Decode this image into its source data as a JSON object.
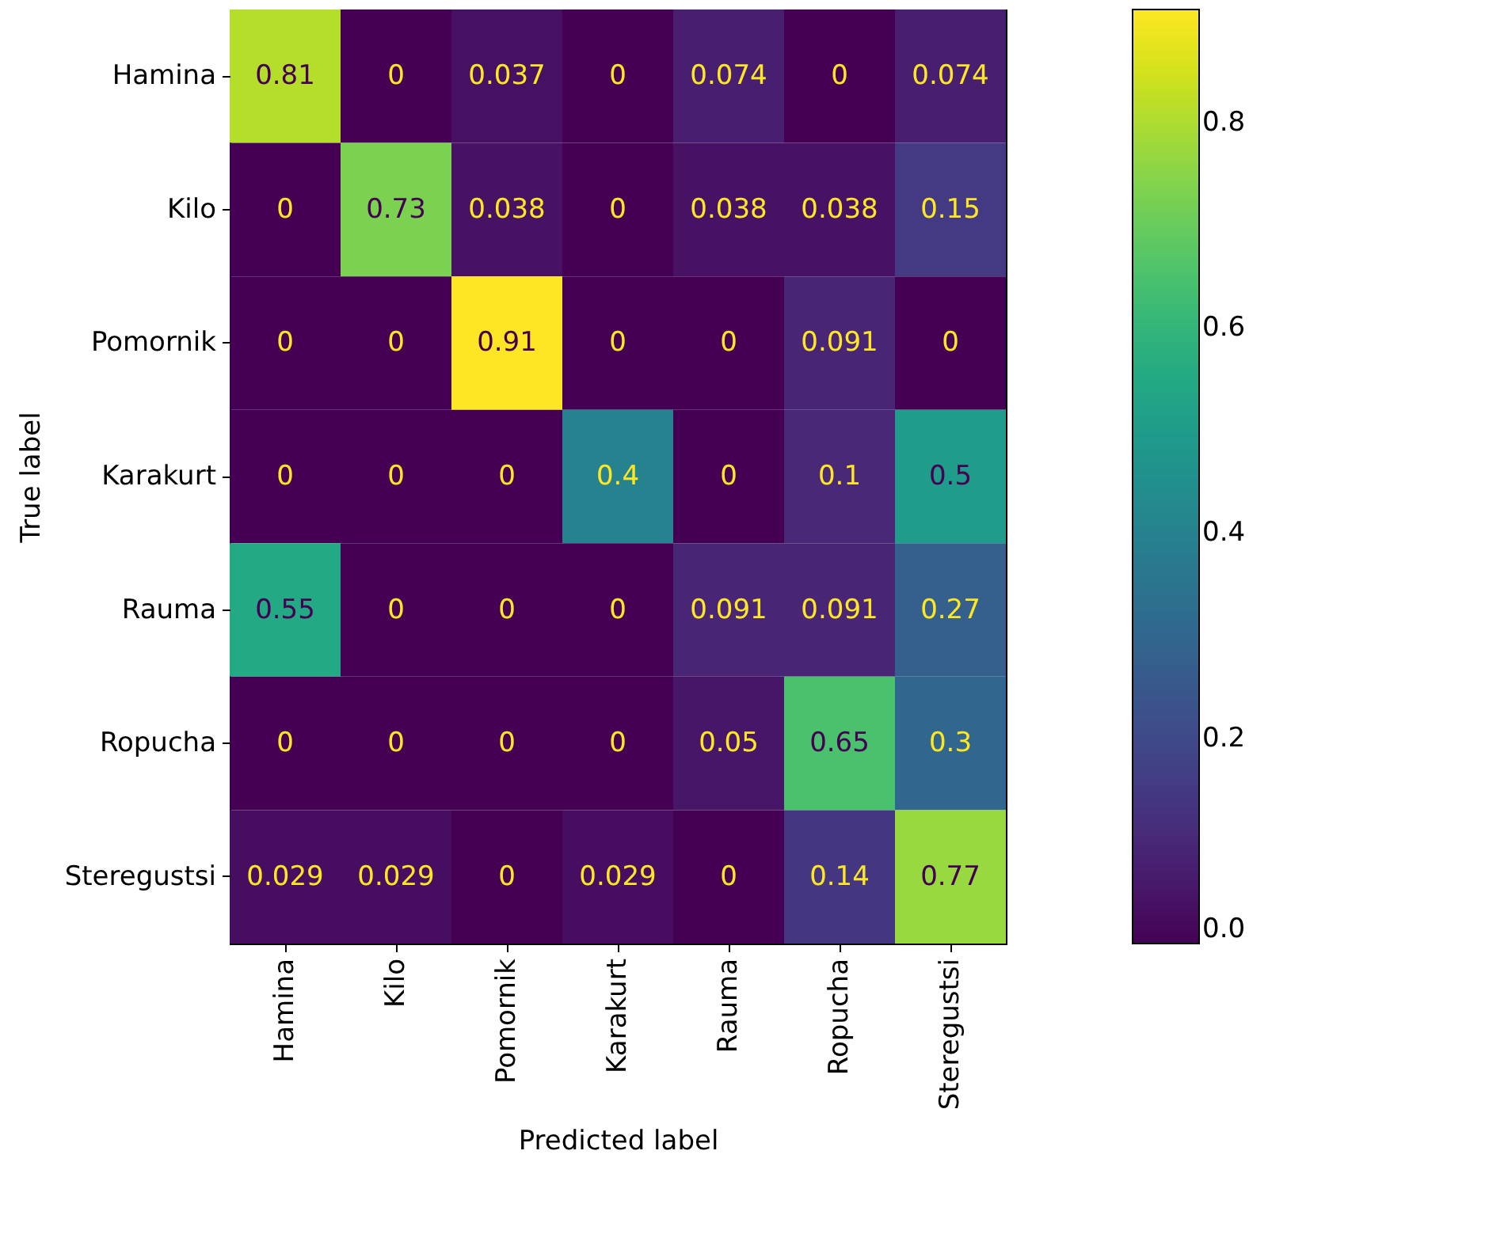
{
  "chart_data": {
    "type": "heatmap",
    "xlabel": "Predicted label",
    "ylabel": "True label",
    "categories": [
      "Hamina",
      "Kilo",
      "Pomornik",
      "Karakurt",
      "Rauma",
      "Ropucha",
      "Steregustsi"
    ],
    "y_categories": [
      "Hamina",
      "Kilo",
      "Pomornik",
      "Karakurt",
      "Rauma",
      "Ropucha",
      "Steregustsi"
    ],
    "cells": [
      [
        0.81,
        0,
        0.037,
        0,
        0.074,
        0,
        0.074
      ],
      [
        0,
        0.73,
        0.038,
        0,
        0.038,
        0.038,
        0.15
      ],
      [
        0,
        0,
        0.91,
        0,
        0,
        0.091,
        0
      ],
      [
        0,
        0,
        0,
        0.4,
        0,
        0.1,
        0.5
      ],
      [
        0.55,
        0,
        0,
        0,
        0.091,
        0.091,
        0.27
      ],
      [
        0,
        0,
        0,
        0,
        0.05,
        0.65,
        0.3
      ],
      [
        0.029,
        0.029,
        0,
        0.029,
        0,
        0.14,
        0.77
      ]
    ],
    "clim": [
      0,
      0.91
    ],
    "cticks": [
      {
        "value": 0,
        "label": "0.0"
      },
      {
        "value": 0.2,
        "label": "0.2"
      },
      {
        "value": 0.4,
        "label": "0.4"
      },
      {
        "value": 0.6,
        "label": "0.6"
      },
      {
        "value": 0.8,
        "label": "0.8"
      }
    ],
    "data_labels": true
  }
}
